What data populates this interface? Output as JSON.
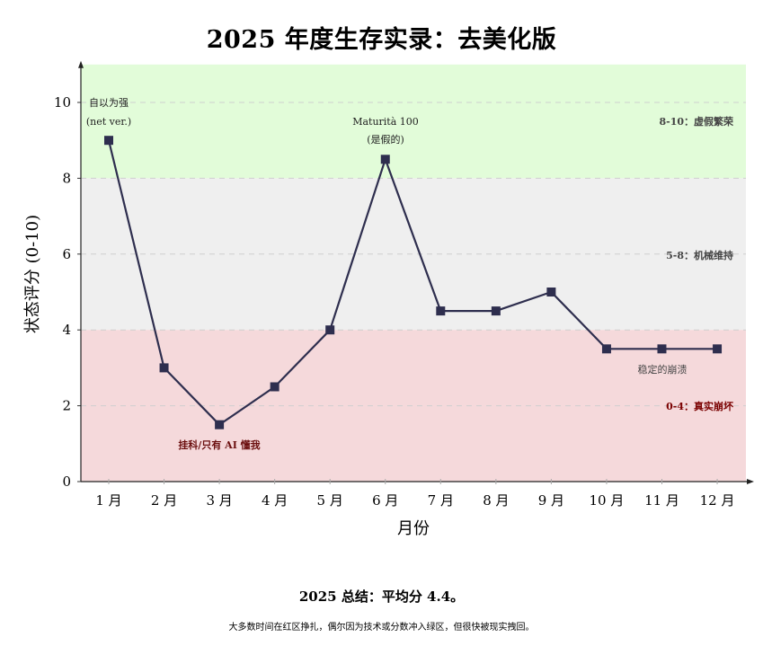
{
  "title": "2025 年度生存实录：去美化版",
  "chart_data": {
    "type": "line",
    "title": "2025 年度生存实录：去美化版",
    "xlabel": "月份",
    "ylabel": "状态评分 (0-10)",
    "categories": [
      "1 月",
      "2 月",
      "3 月",
      "4 月",
      "5 月",
      "6 月",
      "7 月",
      "8 月",
      "9 月",
      "10 月",
      "11 月",
      "12 月"
    ],
    "series": [
      {
        "name": "状态评分",
        "values": [
          9,
          3,
          1.5,
          2.5,
          4,
          8.5,
          4.5,
          4.5,
          5,
          3.5,
          3.5,
          3.5
        ],
        "color": "#2e2e4e",
        "marker": "square"
      }
    ],
    "ylim": [
      0,
      11
    ],
    "yticks": [
      0,
      2,
      4,
      6,
      8,
      10
    ],
    "grid": "horizontal dashed",
    "legend": "none",
    "zones": [
      {
        "range": [
          8,
          11
        ],
        "label": "8-10：虚假繁荣",
        "fill": "#e2fcd9",
        "label_color": "#444444"
      },
      {
        "range": [
          4,
          8
        ],
        "label": "5-8：机械维持",
        "fill": "#efefef",
        "label_color": "#444444"
      },
      {
        "range": [
          0,
          4
        ],
        "label": "0-4：真实崩坏",
        "fill": "#f5d9db",
        "label_color": "#7a0000"
      }
    ],
    "annotations": [
      {
        "lines": [
          "自以为强",
          "(net ver.)"
        ],
        "month": 1,
        "color": "#222222"
      },
      {
        "lines": [
          "Maturità 100",
          "(是假的)"
        ],
        "month": 6,
        "color": "#222222"
      },
      {
        "lines": [
          "挂科/只有 AI 懂我"
        ],
        "month": 3,
        "color": "#6b0f0f",
        "bold": true
      },
      {
        "lines": [
          "稳定的崩溃"
        ],
        "month": 11,
        "color": "#444444"
      }
    ]
  },
  "summary": {
    "title": "2025 总结：平均分 4.4。",
    "text": "大多数时间在红区挣扎，偶尔因为技术或分数冲入绿区，但很快被现实拽回。"
  }
}
